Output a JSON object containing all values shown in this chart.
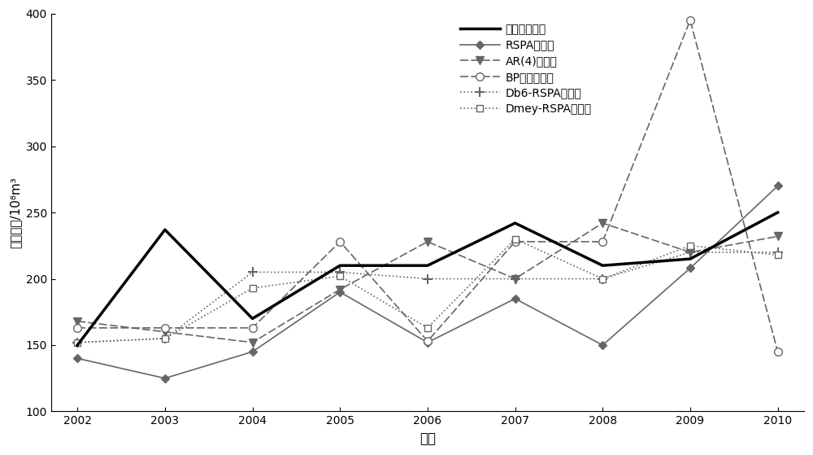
{
  "years": [
    2002,
    2003,
    2004,
    2005,
    2006,
    2007,
    2008,
    2009,
    2010
  ],
  "actual": [
    150,
    237,
    170,
    210,
    210,
    242,
    210,
    215,
    250
  ],
  "rspa": [
    140,
    125,
    145,
    190,
    152,
    185,
    150,
    208,
    270
  ],
  "ar4": [
    168,
    160,
    152,
    192,
    228,
    200,
    242,
    220,
    232
  ],
  "bp": [
    163,
    163,
    163,
    228,
    153,
    228,
    228,
    395,
    145
  ],
  "db6rspa": [
    152,
    155,
    205,
    205,
    200,
    200,
    200,
    220,
    220
  ],
  "dmeyrspa": [
    152,
    155,
    193,
    202,
    163,
    230,
    200,
    225,
    218
  ],
  "xlabel": "年份",
  "ylabel": "年径流量/10⁸m³",
  "ylim": [
    100,
    400
  ],
  "xlim_min": 2001.7,
  "xlim_max": 2010.3,
  "yticks": [
    100,
    150,
    200,
    250,
    300,
    350,
    400
  ],
  "xticks": [
    2002,
    2003,
    2004,
    2005,
    2006,
    2007,
    2008,
    2009,
    2010
  ],
  "legend_actual": "实测年径流量",
  "legend_rspa": "RSPA预测値",
  "legend_ar4": "AR(4)预测値",
  "legend_bp": "BP模型预测値",
  "legend_db6rspa": "Db6-RSPA预测値",
  "legend_dmeyrspa": "Dmey-RSPA预测値",
  "color_actual": "#000000",
  "color_rspa": "#666666",
  "color_ar4": "#666666",
  "color_bp": "#666666",
  "color_db6rspa": "#666666",
  "color_dmeyrspa": "#666666",
  "background": "#ffffff"
}
